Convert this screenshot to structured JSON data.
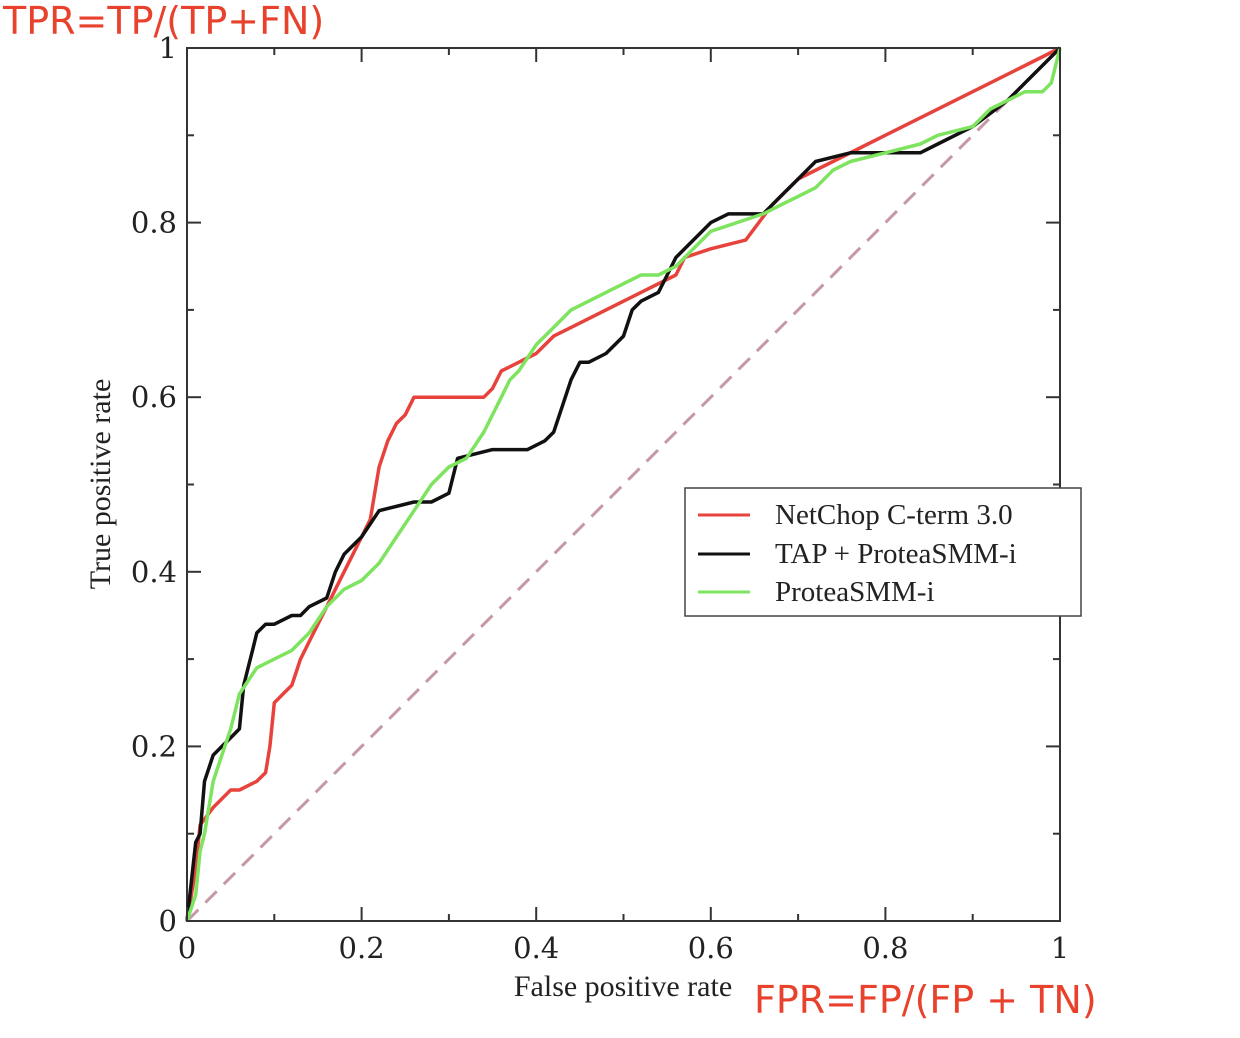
{
  "chart_data": {
    "type": "line",
    "xlabel": "False positive rate",
    "ylabel": "True positive rate",
    "xlim": [
      0,
      1
    ],
    "ylim": [
      0,
      1
    ],
    "x_ticks": [
      {
        "value": 0,
        "label": "0"
      },
      {
        "value": 0.2,
        "label": "0.2"
      },
      {
        "value": 0.4,
        "label": "0.4"
      },
      {
        "value": 0.6,
        "label": "0.6"
      },
      {
        "value": 0.8,
        "label": "0.8"
      },
      {
        "value": 1,
        "label": "1"
      }
    ],
    "y_ticks": [
      {
        "value": 0,
        "label": "0"
      },
      {
        "value": 0.2,
        "label": "0.2"
      },
      {
        "value": 0.4,
        "label": "0.4"
      },
      {
        "value": 0.6,
        "label": "0.6"
      },
      {
        "value": 0.8,
        "label": "0.8"
      },
      {
        "value": 1,
        "label": "1"
      }
    ],
    "minor_ticks": [
      0.1,
      0.3,
      0.5,
      0.7,
      0.9
    ],
    "grid": false,
    "legend_position": "right-center",
    "annotations": {
      "y_formula": "TPR=TP/(TP+FN)",
      "x_formula": "FPR=FP/(FP + TN)"
    },
    "reference_line": {
      "x": [
        0,
        1
      ],
      "y": [
        0,
        1
      ],
      "color": "#c59aa4",
      "dashed": true
    },
    "series": [
      {
        "name": "NetChop C-term 3.0",
        "color": "#e8423c",
        "x": [
          0,
          0.005,
          0.01,
          0.015,
          0.03,
          0.05,
          0.06,
          0.08,
          0.09,
          0.095,
          0.1,
          0.11,
          0.12,
          0.13,
          0.14,
          0.15,
          0.16,
          0.17,
          0.18,
          0.19,
          0.2,
          0.21,
          0.215,
          0.22,
          0.23,
          0.24,
          0.25,
          0.26,
          0.27,
          0.3,
          0.34,
          0.35,
          0.36,
          0.38,
          0.4,
          0.42,
          0.44,
          0.48,
          0.52,
          0.56,
          0.57,
          0.6,
          0.64,
          0.67,
          0.7,
          0.74,
          0.78,
          0.84,
          0.9,
          0.96,
          1
        ],
        "y": [
          0,
          0.03,
          0.06,
          0.11,
          0.13,
          0.15,
          0.15,
          0.16,
          0.17,
          0.2,
          0.25,
          0.26,
          0.27,
          0.3,
          0.32,
          0.34,
          0.36,
          0.38,
          0.4,
          0.42,
          0.44,
          0.46,
          0.49,
          0.52,
          0.55,
          0.57,
          0.58,
          0.6,
          0.6,
          0.6,
          0.6,
          0.61,
          0.63,
          0.64,
          0.65,
          0.67,
          0.68,
          0.7,
          0.72,
          0.74,
          0.76,
          0.77,
          0.78,
          0.82,
          0.85,
          0.87,
          0.89,
          0.92,
          0.95,
          0.98,
          1
        ]
      },
      {
        "name": "TAP + ProteaSMM-i",
        "color": "#111111",
        "x": [
          0,
          0.01,
          0.015,
          0.02,
          0.03,
          0.04,
          0.05,
          0.06,
          0.065,
          0.07,
          0.075,
          0.08,
          0.09,
          0.1,
          0.12,
          0.13,
          0.14,
          0.16,
          0.17,
          0.18,
          0.2,
          0.22,
          0.26,
          0.28,
          0.3,
          0.31,
          0.35,
          0.36,
          0.39,
          0.41,
          0.42,
          0.43,
          0.44,
          0.45,
          0.46,
          0.48,
          0.5,
          0.51,
          0.52,
          0.54,
          0.55,
          0.56,
          0.58,
          0.6,
          0.62,
          0.66,
          0.68,
          0.7,
          0.72,
          0.76,
          0.8,
          0.84,
          0.86,
          0.9,
          0.94,
          0.96,
          0.98,
          1
        ],
        "y": [
          0,
          0.09,
          0.1,
          0.16,
          0.19,
          0.2,
          0.21,
          0.22,
          0.27,
          0.29,
          0.31,
          0.33,
          0.34,
          0.34,
          0.35,
          0.35,
          0.36,
          0.37,
          0.4,
          0.42,
          0.44,
          0.47,
          0.48,
          0.48,
          0.49,
          0.53,
          0.54,
          0.54,
          0.54,
          0.55,
          0.56,
          0.59,
          0.62,
          0.64,
          0.64,
          0.65,
          0.67,
          0.7,
          0.71,
          0.72,
          0.74,
          0.76,
          0.78,
          0.8,
          0.81,
          0.81,
          0.83,
          0.85,
          0.87,
          0.88,
          0.88,
          0.88,
          0.89,
          0.91,
          0.94,
          0.96,
          0.98,
          1
        ]
      },
      {
        "name": "ProteaSMM-i",
        "color": "#7ee35f",
        "x": [
          0,
          0.01,
          0.015,
          0.02,
          0.03,
          0.04,
          0.05,
          0.06,
          0.08,
          0.1,
          0.12,
          0.14,
          0.16,
          0.18,
          0.2,
          0.22,
          0.24,
          0.26,
          0.28,
          0.3,
          0.32,
          0.34,
          0.36,
          0.37,
          0.38,
          0.4,
          0.42,
          0.44,
          0.46,
          0.48,
          0.5,
          0.52,
          0.54,
          0.56,
          0.58,
          0.6,
          0.63,
          0.66,
          0.68,
          0.7,
          0.72,
          0.74,
          0.76,
          0.8,
          0.84,
          0.86,
          0.9,
          0.92,
          0.94,
          0.96,
          0.97,
          0.98,
          0.99,
          1
        ],
        "y": [
          0,
          0.03,
          0.08,
          0.1,
          0.16,
          0.19,
          0.22,
          0.26,
          0.29,
          0.3,
          0.31,
          0.33,
          0.36,
          0.38,
          0.39,
          0.41,
          0.44,
          0.47,
          0.5,
          0.52,
          0.53,
          0.56,
          0.6,
          0.62,
          0.63,
          0.66,
          0.68,
          0.7,
          0.71,
          0.72,
          0.73,
          0.74,
          0.74,
          0.75,
          0.77,
          0.79,
          0.8,
          0.81,
          0.82,
          0.83,
          0.84,
          0.86,
          0.87,
          0.88,
          0.89,
          0.9,
          0.91,
          0.93,
          0.94,
          0.95,
          0.95,
          0.95,
          0.96,
          1
        ]
      }
    ]
  }
}
